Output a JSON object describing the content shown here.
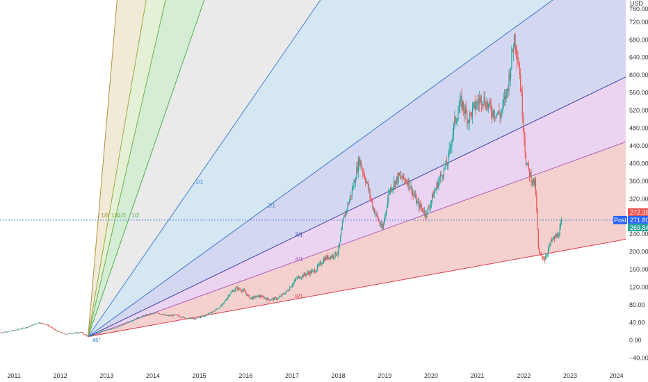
{
  "chart_data": {
    "type": "candlestick",
    "title": "",
    "currency_label": "USD",
    "x_ticks": [
      "2011",
      "2012",
      "2013",
      "2014",
      "2015",
      "2016",
      "2017",
      "2018",
      "2019",
      "2020",
      "2021",
      "2022",
      "2023",
      "2024"
    ],
    "y_ticks": [
      720,
      680,
      640,
      600,
      560,
      520,
      480,
      440,
      400,
      360,
      320,
      280,
      240,
      200,
      160,
      120,
      80,
      40,
      0,
      -40
    ],
    "y_tick_labels": [
      "720.00",
      "680.00",
      "640.00",
      "600.00",
      "560.00",
      "520.00",
      "480.00",
      "440.00",
      "400.00",
      "360.00",
      "320.00",
      "280.00",
      "240.00",
      "200.00",
      "160.00",
      "120.00",
      "80.00",
      "40.00",
      "0.00",
      "−40.00"
    ],
    "y_top_cut_label": "760.00",
    "ylim": [
      -60,
      770
    ],
    "xlim": [
      2010.7,
      2024.2
    ],
    "price_series": [
      [
        2010.7,
        17
      ],
      [
        2011.0,
        22
      ],
      [
        2011.3,
        30
      ],
      [
        2011.55,
        40
      ],
      [
        2011.75,
        33
      ],
      [
        2011.9,
        22
      ],
      [
        2012.1,
        14
      ],
      [
        2012.3,
        16
      ],
      [
        2012.45,
        18
      ],
      [
        2012.6,
        8
      ],
      [
        2012.8,
        15
      ],
      [
        2013.0,
        24
      ],
      [
        2013.2,
        28
      ],
      [
        2013.45,
        40
      ],
      [
        2013.7,
        52
      ],
      [
        2013.9,
        58
      ],
      [
        2014.1,
        62
      ],
      [
        2014.3,
        55
      ],
      [
        2014.5,
        57
      ],
      [
        2014.7,
        50
      ],
      [
        2014.9,
        48
      ],
      [
        2015.1,
        55
      ],
      [
        2015.3,
        65
      ],
      [
        2015.5,
        80
      ],
      [
        2015.65,
        105
      ],
      [
        2015.8,
        118
      ],
      [
        2015.95,
        112
      ],
      [
        2016.1,
        95
      ],
      [
        2016.3,
        100
      ],
      [
        2016.5,
        92
      ],
      [
        2016.7,
        95
      ],
      [
        2016.9,
        112
      ],
      [
        2017.1,
        140
      ],
      [
        2017.3,
        150
      ],
      [
        2017.5,
        158
      ],
      [
        2017.7,
        185
      ],
      [
        2017.9,
        192
      ],
      [
        2018.0,
        200
      ],
      [
        2018.1,
        270
      ],
      [
        2018.3,
        340
      ],
      [
        2018.45,
        410
      ],
      [
        2018.6,
        360
      ],
      [
        2018.75,
        300
      ],
      [
        2018.95,
        250
      ],
      [
        2019.1,
        340
      ],
      [
        2019.3,
        370
      ],
      [
        2019.5,
        360
      ],
      [
        2019.7,
        310
      ],
      [
        2019.9,
        285
      ],
      [
        2020.05,
        330
      ],
      [
        2020.2,
        370
      ],
      [
        2020.35,
        400
      ],
      [
        2020.5,
        490
      ],
      [
        2020.65,
        540
      ],
      [
        2020.8,
        500
      ],
      [
        2020.95,
        530
      ],
      [
        2021.1,
        550
      ],
      [
        2021.3,
        520
      ],
      [
        2021.5,
        510
      ],
      [
        2021.65,
        570
      ],
      [
        2021.8,
        690
      ],
      [
        2021.9,
        620
      ],
      [
        2022.05,
        400
      ],
      [
        2022.15,
        370
      ],
      [
        2022.25,
        350
      ],
      [
        2022.32,
        195
      ],
      [
        2022.45,
        185
      ],
      [
        2022.6,
        225
      ],
      [
        2022.75,
        240
      ],
      [
        2022.83,
        272
      ]
    ],
    "gann_fan": {
      "origin": [
        2012.6,
        8
      ],
      "base_slope_per_year": 19,
      "lines": [
        {
          "label": "8/1",
          "ratio": 1,
          "color": "#e03a4e"
        },
        {
          "label": "4/1",
          "ratio": 2,
          "color": "#b05cc0"
        },
        {
          "label": "3/1",
          "ratio": 2.667,
          "color": "#3a3fa8"
        },
        {
          "label": "2/1",
          "ratio": 4,
          "color": "#3a76c4"
        },
        {
          "label": "1/1",
          "ratio": 8,
          "color": "#3f7fd0"
        },
        {
          "label": "1/2",
          "ratio": 16,
          "color": "#4ab04a"
        },
        {
          "label": "1/3",
          "ratio": 24,
          "color": "#6ab04a"
        },
        {
          "label": "1/4",
          "ratio": 32,
          "color": "#9aaa40"
        },
        {
          "label": "1/8",
          "ratio": 64,
          "color": "#b09040"
        }
      ],
      "fill_colors": [
        "#f2c9c5",
        "#e8ccee",
        "#ccd0f0",
        "#cfe3f2",
        "#e6e6e6",
        "#cdeacd",
        "#e1efcf",
        "#ede6cf"
      ],
      "angle_label": "46°"
    },
    "current_price": {
      "value": 271.8,
      "label": "Post",
      "high_badge": "272.38",
      "close_badge": "271.80",
      "low_badge": "269.84"
    },
    "colors": {
      "up": "#26a69a",
      "down": "#ef5350",
      "price_line": "#3d6fd6"
    }
  }
}
